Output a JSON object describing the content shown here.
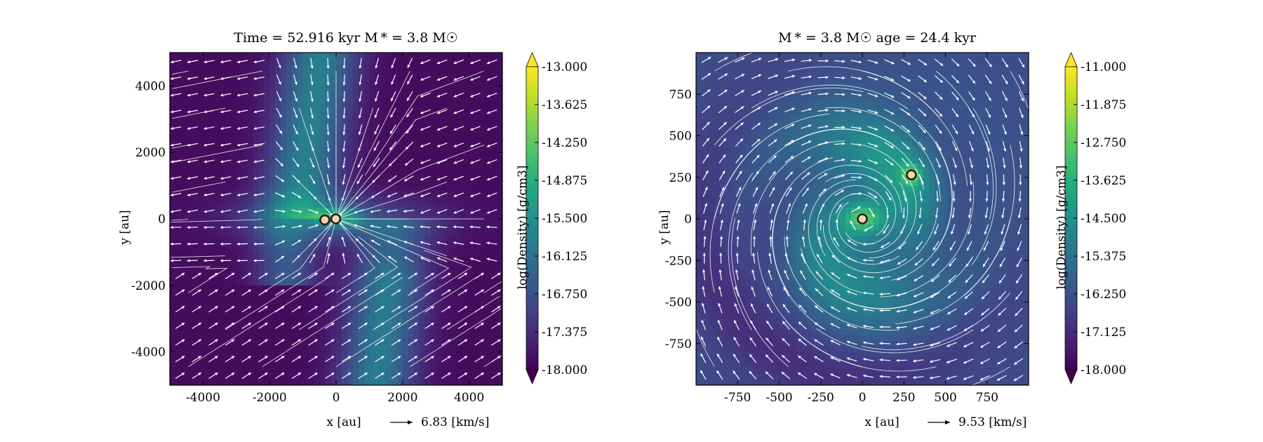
{
  "chart_data": [
    {
      "type": "heatmap",
      "title": "Time = 52.916 kyr    M * = 3.8 M☉",
      "xlabel": "x [au]",
      "ylabel": "y [au]",
      "xlim": [
        -5000,
        5000
      ],
      "ylim": [
        -5000,
        5000
      ],
      "xticks": [
        -4000,
        -2000,
        0,
        2000,
        4000
      ],
      "yticks": [
        -4000,
        -2000,
        0,
        2000,
        4000
      ],
      "xtick_labels": [
        "-4000",
        "-2000",
        "0",
        "2000",
        "4000"
      ],
      "ytick_labels": [
        "-4000",
        "-2000",
        "0",
        "2000",
        "4000"
      ],
      "colorbar": {
        "label": "log(Density) [g/cm3]",
        "range": [
          -18.0,
          -13.0
        ],
        "ticks": [
          "-13.000",
          "-13.625",
          "-14.250",
          "-14.875",
          "-15.500",
          "-16.125",
          "-16.750",
          "-17.375",
          "-18.000"
        ],
        "extend": "both"
      },
      "vector_key": {
        "value": 6.83,
        "label": "6.83 [km/s]"
      },
      "sinks": [
        {
          "x": -340,
          "y": -30
        },
        {
          "x": -10,
          "y": 0
        }
      ],
      "structure": "filament"
    },
    {
      "type": "heatmap",
      "title": "M * = 3.8 M☉         age = 24.4 kyr",
      "xlabel": "x [au]",
      "ylabel": "y [au]",
      "xlim": [
        -1000,
        1000
      ],
      "ylim": [
        -1000,
        1000
      ],
      "xticks": [
        -750,
        -500,
        -250,
        0,
        250,
        500,
        750
      ],
      "yticks": [
        -750,
        -500,
        -250,
        0,
        250,
        500,
        750
      ],
      "xtick_labels": [
        "-750",
        "-500",
        "-250",
        "0",
        "250",
        "500",
        "750"
      ],
      "ytick_labels": [
        "-750",
        "-500",
        "-250",
        "0",
        "250",
        "500",
        "750"
      ],
      "colorbar": {
        "label": "log(Density) [g/cm3]",
        "range": [
          -18.0,
          -11.0
        ],
        "ticks": [
          "-11.000",
          "-11.875",
          "-12.750",
          "-13.625",
          "-14.500",
          "-15.375",
          "-16.250",
          "-17.125",
          "-18.000"
        ],
        "extend": "both"
      },
      "vector_key": {
        "value": 9.53,
        "label": "9.53 [km/s]"
      },
      "sinks": [
        {
          "x": 0,
          "y": 0
        },
        {
          "x": 295,
          "y": 265
        }
      ],
      "structure": "disk"
    }
  ],
  "colors": {
    "viridis": [
      "#440154",
      "#482475",
      "#414487",
      "#355f8d",
      "#2a788e",
      "#21918c",
      "#22a884",
      "#44bf70",
      "#7ad151",
      "#bddf26",
      "#fde725"
    ],
    "vectors": "#ffffff",
    "sink_fill": "#f2d7a8",
    "sink_edge": "#222222"
  }
}
